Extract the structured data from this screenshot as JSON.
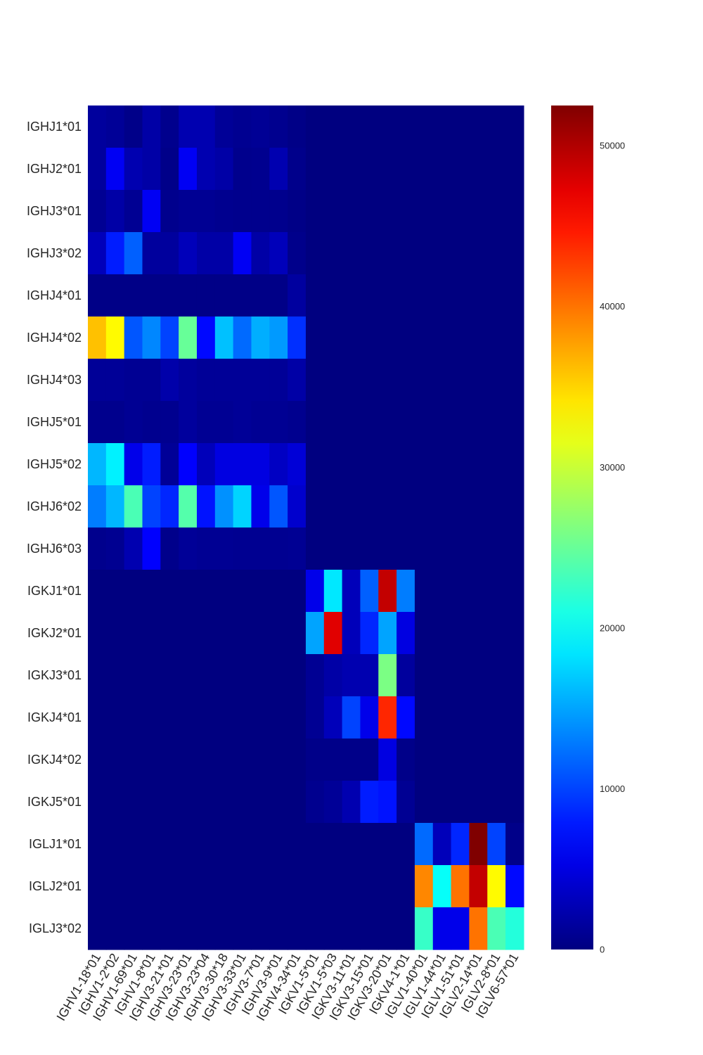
{
  "chart_data": {
    "type": "heatmap",
    "colormap": "jet",
    "colorbar": {
      "min": 0,
      "max": 52500,
      "ticks": [
        0,
        10000,
        20000,
        30000,
        40000,
        50000
      ],
      "tick_labels": [
        "0",
        "10000",
        "20000",
        "30000",
        "40000",
        "50000"
      ]
    },
    "x_categories": [
      "IGHV1-18*01",
      "IGHV1-2*02",
      "IGHV1-69*01",
      "IGHV1-8*01",
      "IGHV3-21*01",
      "IGHV3-23*01",
      "IGHV3-23*04",
      "IGHV3-30*18",
      "IGHV3-33*01",
      "IGHV3-7*01",
      "IGHV3-9*01",
      "IGHV4-34*01",
      "IGKV1-5*01",
      "IGKV1-5*03",
      "IGKV3-11*01",
      "IGKV3-15*01",
      "IGKV3-20*01",
      "IGKV4-1*01",
      "IGLV1-40*01",
      "IGLV1-44*01",
      "IGLV1-51*01",
      "IGLV2-14*01",
      "IGLV2-8*01",
      "IGLV6-57*01"
    ],
    "y_categories": [
      "IGHJ1*01",
      "IGHJ2*01",
      "IGHJ3*01",
      "IGHJ3*02",
      "IGHJ4*01",
      "IGHJ4*02",
      "IGHJ4*03",
      "IGHJ5*01",
      "IGHJ5*02",
      "IGHJ6*02",
      "IGHJ6*03",
      "IGKJ1*01",
      "IGKJ2*01",
      "IGKJ3*01",
      "IGKJ4*01",
      "IGKJ4*02",
      "IGKJ5*01",
      "IGLJ1*01",
      "IGLJ2*01",
      "IGLJ3*02"
    ],
    "values": [
      [
        1500,
        1200,
        500,
        2000,
        700,
        2500,
        2500,
        1200,
        900,
        1100,
        800,
        400,
        0,
        0,
        0,
        0,
        0,
        0,
        0,
        0,
        0,
        0,
        0,
        0
      ],
      [
        1500,
        6000,
        2500,
        2000,
        500,
        6000,
        2500,
        2000,
        700,
        800,
        2500,
        600,
        0,
        0,
        0,
        0,
        0,
        0,
        0,
        0,
        0,
        0,
        0,
        0
      ],
      [
        1000,
        2000,
        1000,
        6000,
        700,
        1000,
        1000,
        800,
        700,
        700,
        700,
        400,
        0,
        0,
        0,
        0,
        0,
        0,
        0,
        0,
        0,
        0,
        0,
        0
      ],
      [
        3000,
        8000,
        11500,
        1500,
        1500,
        3000,
        2000,
        2000,
        6000,
        2000,
        3000,
        600,
        0,
        0,
        0,
        0,
        0,
        0,
        0,
        0,
        0,
        0,
        0,
        0
      ],
      [
        400,
        400,
        400,
        400,
        400,
        400,
        400,
        400,
        400,
        400,
        400,
        1600,
        0,
        0,
        0,
        0,
        0,
        0,
        0,
        0,
        0,
        0,
        0,
        0
      ],
      [
        36000,
        33000,
        11000,
        13500,
        10000,
        25000,
        7000,
        16500,
        12000,
        15500,
        14500,
        9000,
        0,
        0,
        0,
        0,
        0,
        0,
        0,
        0,
        0,
        0,
        0,
        0
      ],
      [
        1200,
        1200,
        1000,
        1000,
        2200,
        1500,
        1200,
        1200,
        1200,
        1200,
        1200,
        2000,
        0,
        0,
        0,
        0,
        0,
        0,
        0,
        0,
        0,
        0,
        0,
        0
      ],
      [
        700,
        700,
        1000,
        800,
        800,
        1500,
        1000,
        1000,
        1200,
        1000,
        1000,
        800,
        0,
        0,
        0,
        0,
        0,
        0,
        0,
        0,
        0,
        0,
        0,
        0
      ],
      [
        16000,
        19000,
        5500,
        8000,
        1200,
        6500,
        3000,
        5000,
        5000,
        5000,
        3500,
        4500,
        0,
        0,
        0,
        0,
        0,
        0,
        0,
        0,
        0,
        0,
        0,
        0
      ],
      [
        13000,
        16000,
        23500,
        10000,
        8500,
        24000,
        7500,
        14000,
        17500,
        5500,
        11000,
        4000,
        0,
        0,
        0,
        0,
        0,
        0,
        0,
        0,
        0,
        0,
        0,
        0
      ],
      [
        700,
        900,
        2500,
        6500,
        600,
        1200,
        1000,
        1000,
        900,
        900,
        900,
        1000,
        0,
        0,
        0,
        0,
        0,
        0,
        0,
        0,
        0,
        0,
        0,
        0
      ],
      [
        0,
        0,
        0,
        0,
        0,
        0,
        0,
        0,
        0,
        0,
        0,
        0,
        5500,
        18500,
        3000,
        11500,
        49000,
        13000,
        0,
        0,
        0,
        0,
        0,
        0
      ],
      [
        0,
        0,
        0,
        0,
        0,
        0,
        0,
        0,
        0,
        0,
        0,
        0,
        15000,
        47500,
        3000,
        8500,
        15000,
        5000,
        0,
        0,
        0,
        0,
        0,
        0
      ],
      [
        0,
        0,
        0,
        0,
        0,
        0,
        0,
        0,
        0,
        0,
        0,
        0,
        1000,
        2000,
        2500,
        2500,
        26000,
        1500,
        0,
        0,
        0,
        0,
        0,
        0
      ],
      [
        0,
        0,
        0,
        0,
        0,
        0,
        0,
        0,
        0,
        0,
        0,
        0,
        1000,
        3000,
        10000,
        5500,
        44000,
        7000,
        0,
        0,
        0,
        0,
        0,
        0
      ],
      [
        0,
        0,
        0,
        0,
        0,
        0,
        0,
        0,
        0,
        0,
        0,
        0,
        500,
        500,
        500,
        500,
        5000,
        500,
        0,
        0,
        0,
        0,
        0,
        0
      ],
      [
        0,
        0,
        0,
        0,
        0,
        0,
        0,
        0,
        0,
        0,
        0,
        0,
        800,
        1200,
        2500,
        8000,
        7500,
        1000,
        0,
        0,
        0,
        0,
        0,
        0
      ],
      [
        0,
        0,
        0,
        0,
        0,
        0,
        0,
        0,
        0,
        0,
        0,
        0,
        0,
        0,
        0,
        0,
        0,
        0,
        12000,
        3000,
        8500,
        52500,
        10000,
        500
      ],
      [
        0,
        0,
        0,
        0,
        0,
        0,
        0,
        0,
        0,
        0,
        0,
        0,
        0,
        0,
        0,
        0,
        0,
        0,
        39000,
        20000,
        40000,
        49000,
        33000,
        7000
      ],
      [
        0,
        0,
        0,
        0,
        0,
        0,
        0,
        0,
        0,
        0,
        0,
        0,
        0,
        0,
        0,
        0,
        0,
        0,
        22500,
        5500,
        5500,
        40000,
        23500,
        21500
      ]
    ],
    "title": "",
    "xlabel": "",
    "ylabel": ""
  }
}
